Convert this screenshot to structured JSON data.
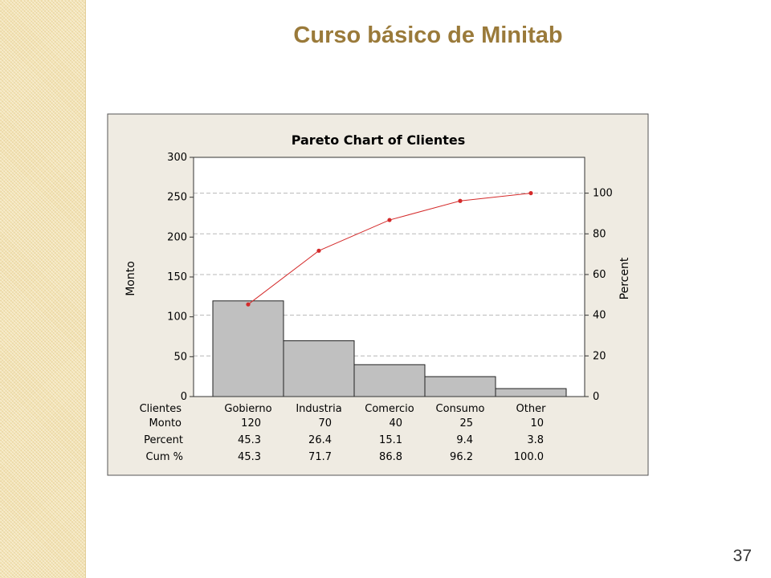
{
  "slide": {
    "title": "Curso básico de Minitab",
    "page_number": "37"
  },
  "colors": {
    "title": "#9a7a3a",
    "panel": "#efebe2",
    "bars": "#c0c0c0",
    "cumulative_line": "#d42a2a"
  },
  "chart_data": {
    "type": "bar",
    "title": "Pareto Chart of Clientes",
    "ylabel": "Monto",
    "y2label": "Percent",
    "ylim": [
      0,
      300
    ],
    "y2lim": [
      0,
      117.6
    ],
    "yticks": [
      0,
      50,
      100,
      150,
      200,
      250,
      300
    ],
    "y2ticks": [
      0,
      20,
      40,
      60,
      80,
      100
    ],
    "grid": true,
    "categories": [
      "Gobierno",
      "Industria",
      "Comercio",
      "Consumo",
      "Other"
    ],
    "series": [
      {
        "name": "Monto",
        "type": "bar",
        "values": [
          120,
          70,
          40,
          25,
          10
        ]
      },
      {
        "name": "Cum %",
        "type": "line",
        "axis": "right",
        "values": [
          45.3,
          71.7,
          86.8,
          96.2,
          100.0
        ]
      }
    ],
    "table": {
      "row_labels": [
        "Clientes",
        "Monto",
        "Percent",
        "Cum %"
      ],
      "monto": [
        "120",
        "70",
        "40",
        "25",
        "10"
      ],
      "percent": [
        "45.3",
        "26.4",
        "15.1",
        "9.4",
        "3.8"
      ],
      "cum_percent": [
        "45.3",
        "71.7",
        "86.8",
        "96.2",
        "100.0"
      ]
    }
  }
}
